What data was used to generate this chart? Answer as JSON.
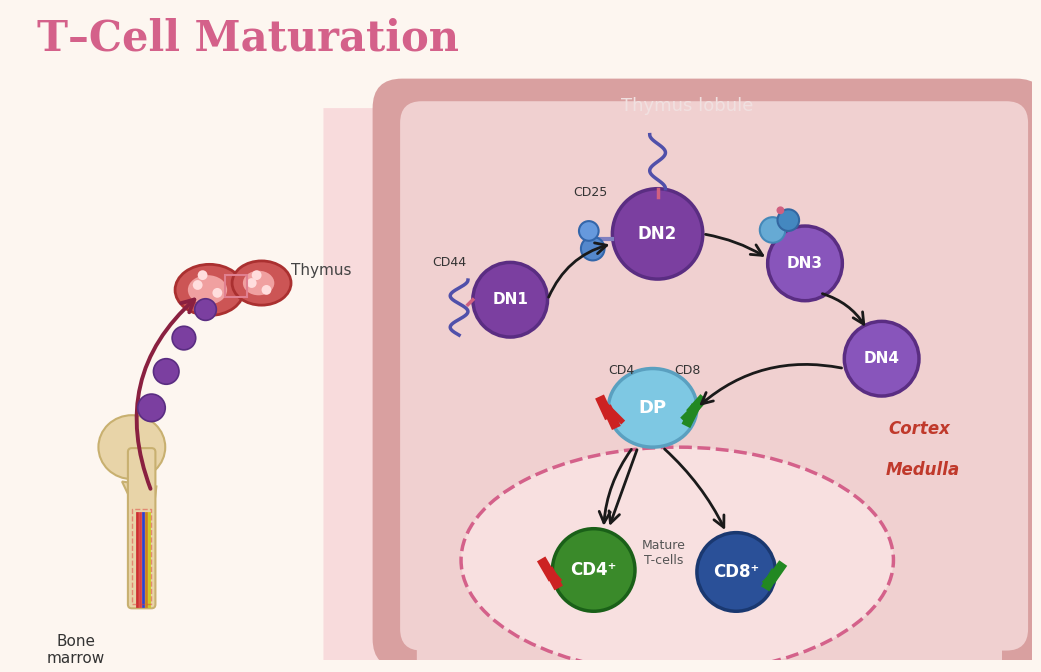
{
  "title": "T–Cell Maturation",
  "title_color": "#d4618a",
  "title_fontsize": 30,
  "bg_color": "#fdf6f0",
  "thymus_lobule_label": "Thymus lobule",
  "thymus_label": "Thymus",
  "bone_marrow_label": "Bone\nmarrow",
  "cortex_label": "Cortex",
  "medulla_label": "Medulla",
  "mature_tcells_label": "Mature\nT-cells",
  "dn_color": "#7b3fa0",
  "dn_border": "#5a2d82",
  "dp_color": "#7ec8e3",
  "dp_border": "#5aa0c0",
  "cd4_cell_color": "#3a8a2a",
  "cd8_cell_color": "#2a5098",
  "stem_cell_color": "#7b3fa0",
  "arrow_color": "#1a1a1a",
  "migration_arrow_color": "#8a2040",
  "cortex_label_color": "#c0392b",
  "medulla_label_color": "#c0392b",
  "lobule_outer_color": "#d9a0a0",
  "lobule_inner_color": "#f0d0d0",
  "medulla_fill": "#f5d8d8",
  "pink_region_color": "#f0c0c8",
  "white_label": "#ffffff",
  "cd4_red": "#cc2222",
  "cd8_green": "#228822",
  "cd25_blue": "#5588cc",
  "cd44_purple": "#5050aa"
}
